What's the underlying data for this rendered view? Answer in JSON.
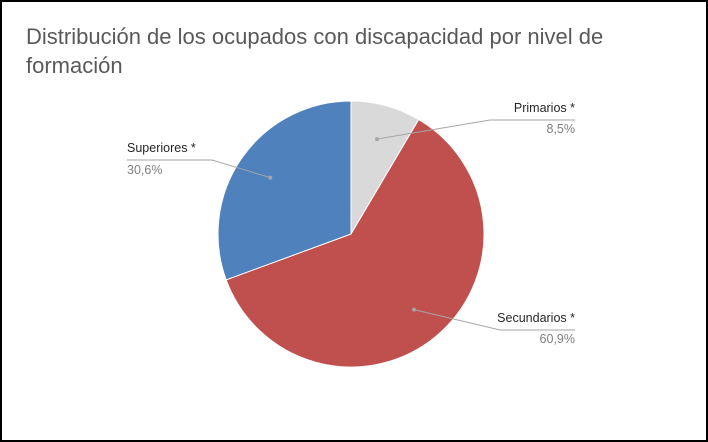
{
  "chart_data": {
    "type": "pie",
    "title": "Distribución de los ocupados con discapacidad por nivel de formación",
    "slices": [
      {
        "label": "Primarios *",
        "value": 8.5,
        "display": "8,5%",
        "color": "#D9D9D9"
      },
      {
        "label": "Secundarios *",
        "value": 60.9,
        "display": "60,9%",
        "color": "#C0504D"
      },
      {
        "label": "Superiores *",
        "value": 30.6,
        "display": "30,6%",
        "color": "#4F81BD"
      }
    ],
    "legend": "none",
    "data_labels": "outside with leader lines"
  }
}
